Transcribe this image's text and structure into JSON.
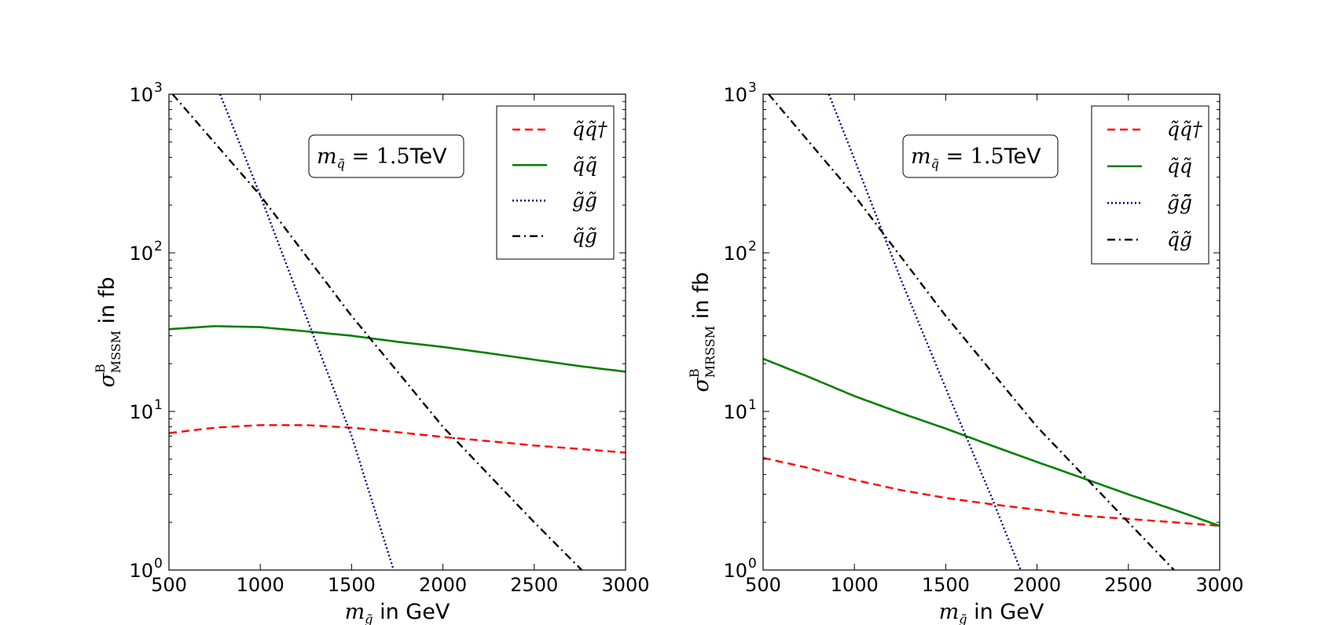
{
  "chart_data": [
    {
      "type": "line",
      "id": "left",
      "xlabel": {
        "math": "m",
        "sub": "g̃",
        "text": " in GeV"
      },
      "ylabel": {
        "math": "σ",
        "sup": "B",
        "sub": "MSSM",
        "text": " in fb"
      },
      "xlim": [
        500,
        3000
      ],
      "ylim": [
        1,
        1000
      ],
      "yscale": "log",
      "xticks": [
        500,
        1000,
        1500,
        2000,
        2500,
        3000
      ],
      "xtick_labels": [
        "500",
        "1000",
        "1500",
        "2000",
        "2500",
        "3000"
      ],
      "yticks": [
        1,
        10,
        100,
        1000
      ],
      "ytick_labels": [
        "10",
        "10",
        "10",
        "10"
      ],
      "ytick_exponents": [
        "0",
        "1",
        "2",
        "3"
      ],
      "annotation": {
        "math": "m",
        "sub": "q̃",
        "eq": " = 1.5",
        "unit": "TeV"
      },
      "legend_location": "top-right",
      "series": [
        {
          "name": "q̃q̃†",
          "color": "#ff0000",
          "style": "dashed",
          "x": [
            500,
            750,
            1000,
            1250,
            1500,
            1750,
            2000,
            2250,
            2500,
            2750,
            3000
          ],
          "values": [
            7.3,
            7.9,
            8.2,
            8.2,
            7.9,
            7.4,
            6.9,
            6.5,
            6.1,
            5.8,
            5.5
          ]
        },
        {
          "name": "q̃q̃",
          "color": "#008000",
          "style": "solid",
          "x": [
            500,
            750,
            1000,
            1250,
            1500,
            1750,
            2000,
            2250,
            2500,
            2750,
            3000
          ],
          "values": [
            33,
            34.5,
            34,
            32,
            30,
            27.5,
            25.5,
            23.3,
            21.2,
            19.3,
            17.8
          ]
        },
        {
          "name": "g̃g̃",
          "color": "#00008b",
          "style": "dotted",
          "x": [
            780,
            1000,
            1250,
            1500,
            1730
          ],
          "values": [
            1000,
            230,
            40,
            7,
            1
          ]
        },
        {
          "name": "q̃g̃",
          "color": "#000000",
          "style": "dashdot",
          "x": [
            520,
            1000,
            1500,
            2000,
            2500,
            2760
          ],
          "values": [
            1000,
            230,
            40,
            8,
            2,
            1
          ]
        }
      ]
    },
    {
      "type": "line",
      "id": "right",
      "xlabel": {
        "math": "m",
        "sub": "g̃",
        "text": " in GeV"
      },
      "ylabel": {
        "math": "σ",
        "sup": "B",
        "sub": "MRSSM",
        "text": " in fb"
      },
      "xlim": [
        500,
        3000
      ],
      "ylim": [
        1,
        1000
      ],
      "yscale": "log",
      "xticks": [
        500,
        1000,
        1500,
        2000,
        2500,
        3000
      ],
      "xtick_labels": [
        "500",
        "1000",
        "1500",
        "2000",
        "2500",
        "3000"
      ],
      "yticks": [
        1,
        10,
        100,
        1000
      ],
      "ytick_labels": [
        "10",
        "10",
        "10",
        "10"
      ],
      "ytick_exponents": [
        "0",
        "1",
        "2",
        "3"
      ],
      "annotation": {
        "math": "m",
        "sub": "q̃",
        "eq": " = 1.5",
        "unit": "TeV"
      },
      "legend_location": "top-right",
      "series": [
        {
          "name": "q̃q̃†",
          "color": "#ff0000",
          "style": "dashed",
          "x": [
            500,
            750,
            1000,
            1250,
            1500,
            1750,
            2000,
            2250,
            2500,
            2750,
            3000
          ],
          "values": [
            5.1,
            4.4,
            3.7,
            3.2,
            2.85,
            2.6,
            2.4,
            2.2,
            2.1,
            2.0,
            1.9
          ]
        },
        {
          "name": "q̃q̃",
          "color": "#008000",
          "style": "solid",
          "x": [
            500,
            750,
            1000,
            1250,
            1500,
            1750,
            2000,
            2250,
            2500,
            2750,
            3000
          ],
          "values": [
            21.5,
            16.5,
            12.5,
            9.8,
            7.8,
            6.1,
            4.8,
            3.8,
            3.0,
            2.4,
            1.9
          ]
        },
        {
          "name": "g̃g̃̄",
          "color": "#00008b",
          "style": "dotted",
          "x": [
            860,
            1000,
            1250,
            1500,
            1750,
            1910
          ],
          "values": [
            1000,
            390,
            70,
            14,
            2.9,
            1
          ]
        },
        {
          "name": "q̃g̃",
          "color": "#000000",
          "style": "dashdot",
          "x": [
            530,
            1000,
            1500,
            2000,
            2500,
            2750
          ],
          "values": [
            1000,
            230,
            40,
            8,
            2,
            1
          ]
        }
      ]
    }
  ]
}
